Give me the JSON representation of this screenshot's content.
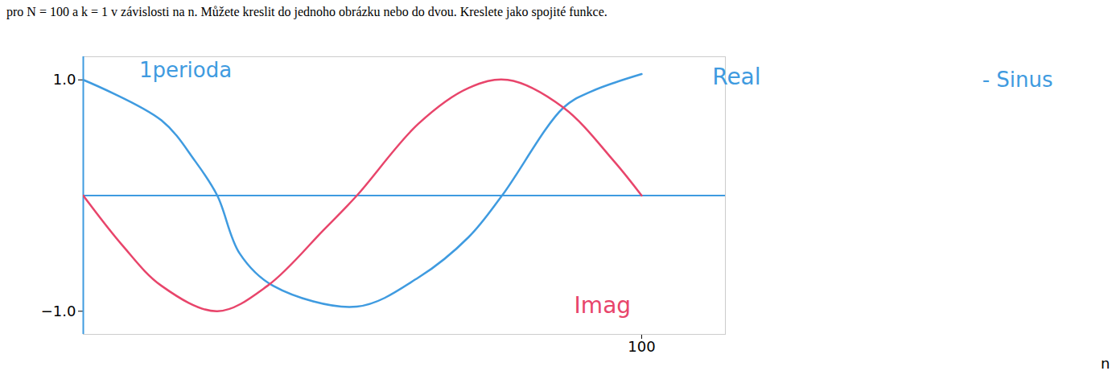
{
  "chart_data": {
    "type": "line",
    "title": "pro N = 100 a k = 1 v závislosti na n. Můžete kreslit do jednoho obrázku nebo do dvou. Kreslete jako spojité funkce.",
    "x_label": "n",
    "xlim": [
      0,
      115
    ],
    "xticks": [
      100
    ],
    "ylim": [
      -1.2,
      1.2
    ],
    "yticks": [
      -1,
      1
    ],
    "grid": false,
    "annotations": [
      "1perioda",
      "- Sinus"
    ],
    "series": [
      {
        "name": "Real",
        "color": "#3f9be0",
        "x": [
          0,
          14,
          20,
          24,
          28,
          34,
          49,
          60,
          69,
          75,
          86,
          91,
          100
        ],
        "values": [
          1.0,
          0.65,
          0.3,
          0.0,
          -0.5,
          -0.78,
          -0.96,
          -0.71,
          -0.36,
          0.0,
          0.76,
          0.9,
          1.05
        ]
      },
      {
        "name": "Imag",
        "color": "#e8456b",
        "x": [
          0,
          7,
          14,
          24,
          33,
          43,
          49,
          60,
          69,
          76,
          86,
          95,
          100
        ],
        "values": [
          0.0,
          -0.43,
          -0.78,
          -1.0,
          -0.78,
          -0.3,
          0.0,
          0.62,
          0.93,
          1.0,
          0.76,
          0.3,
          0.0
        ]
      }
    ]
  }
}
